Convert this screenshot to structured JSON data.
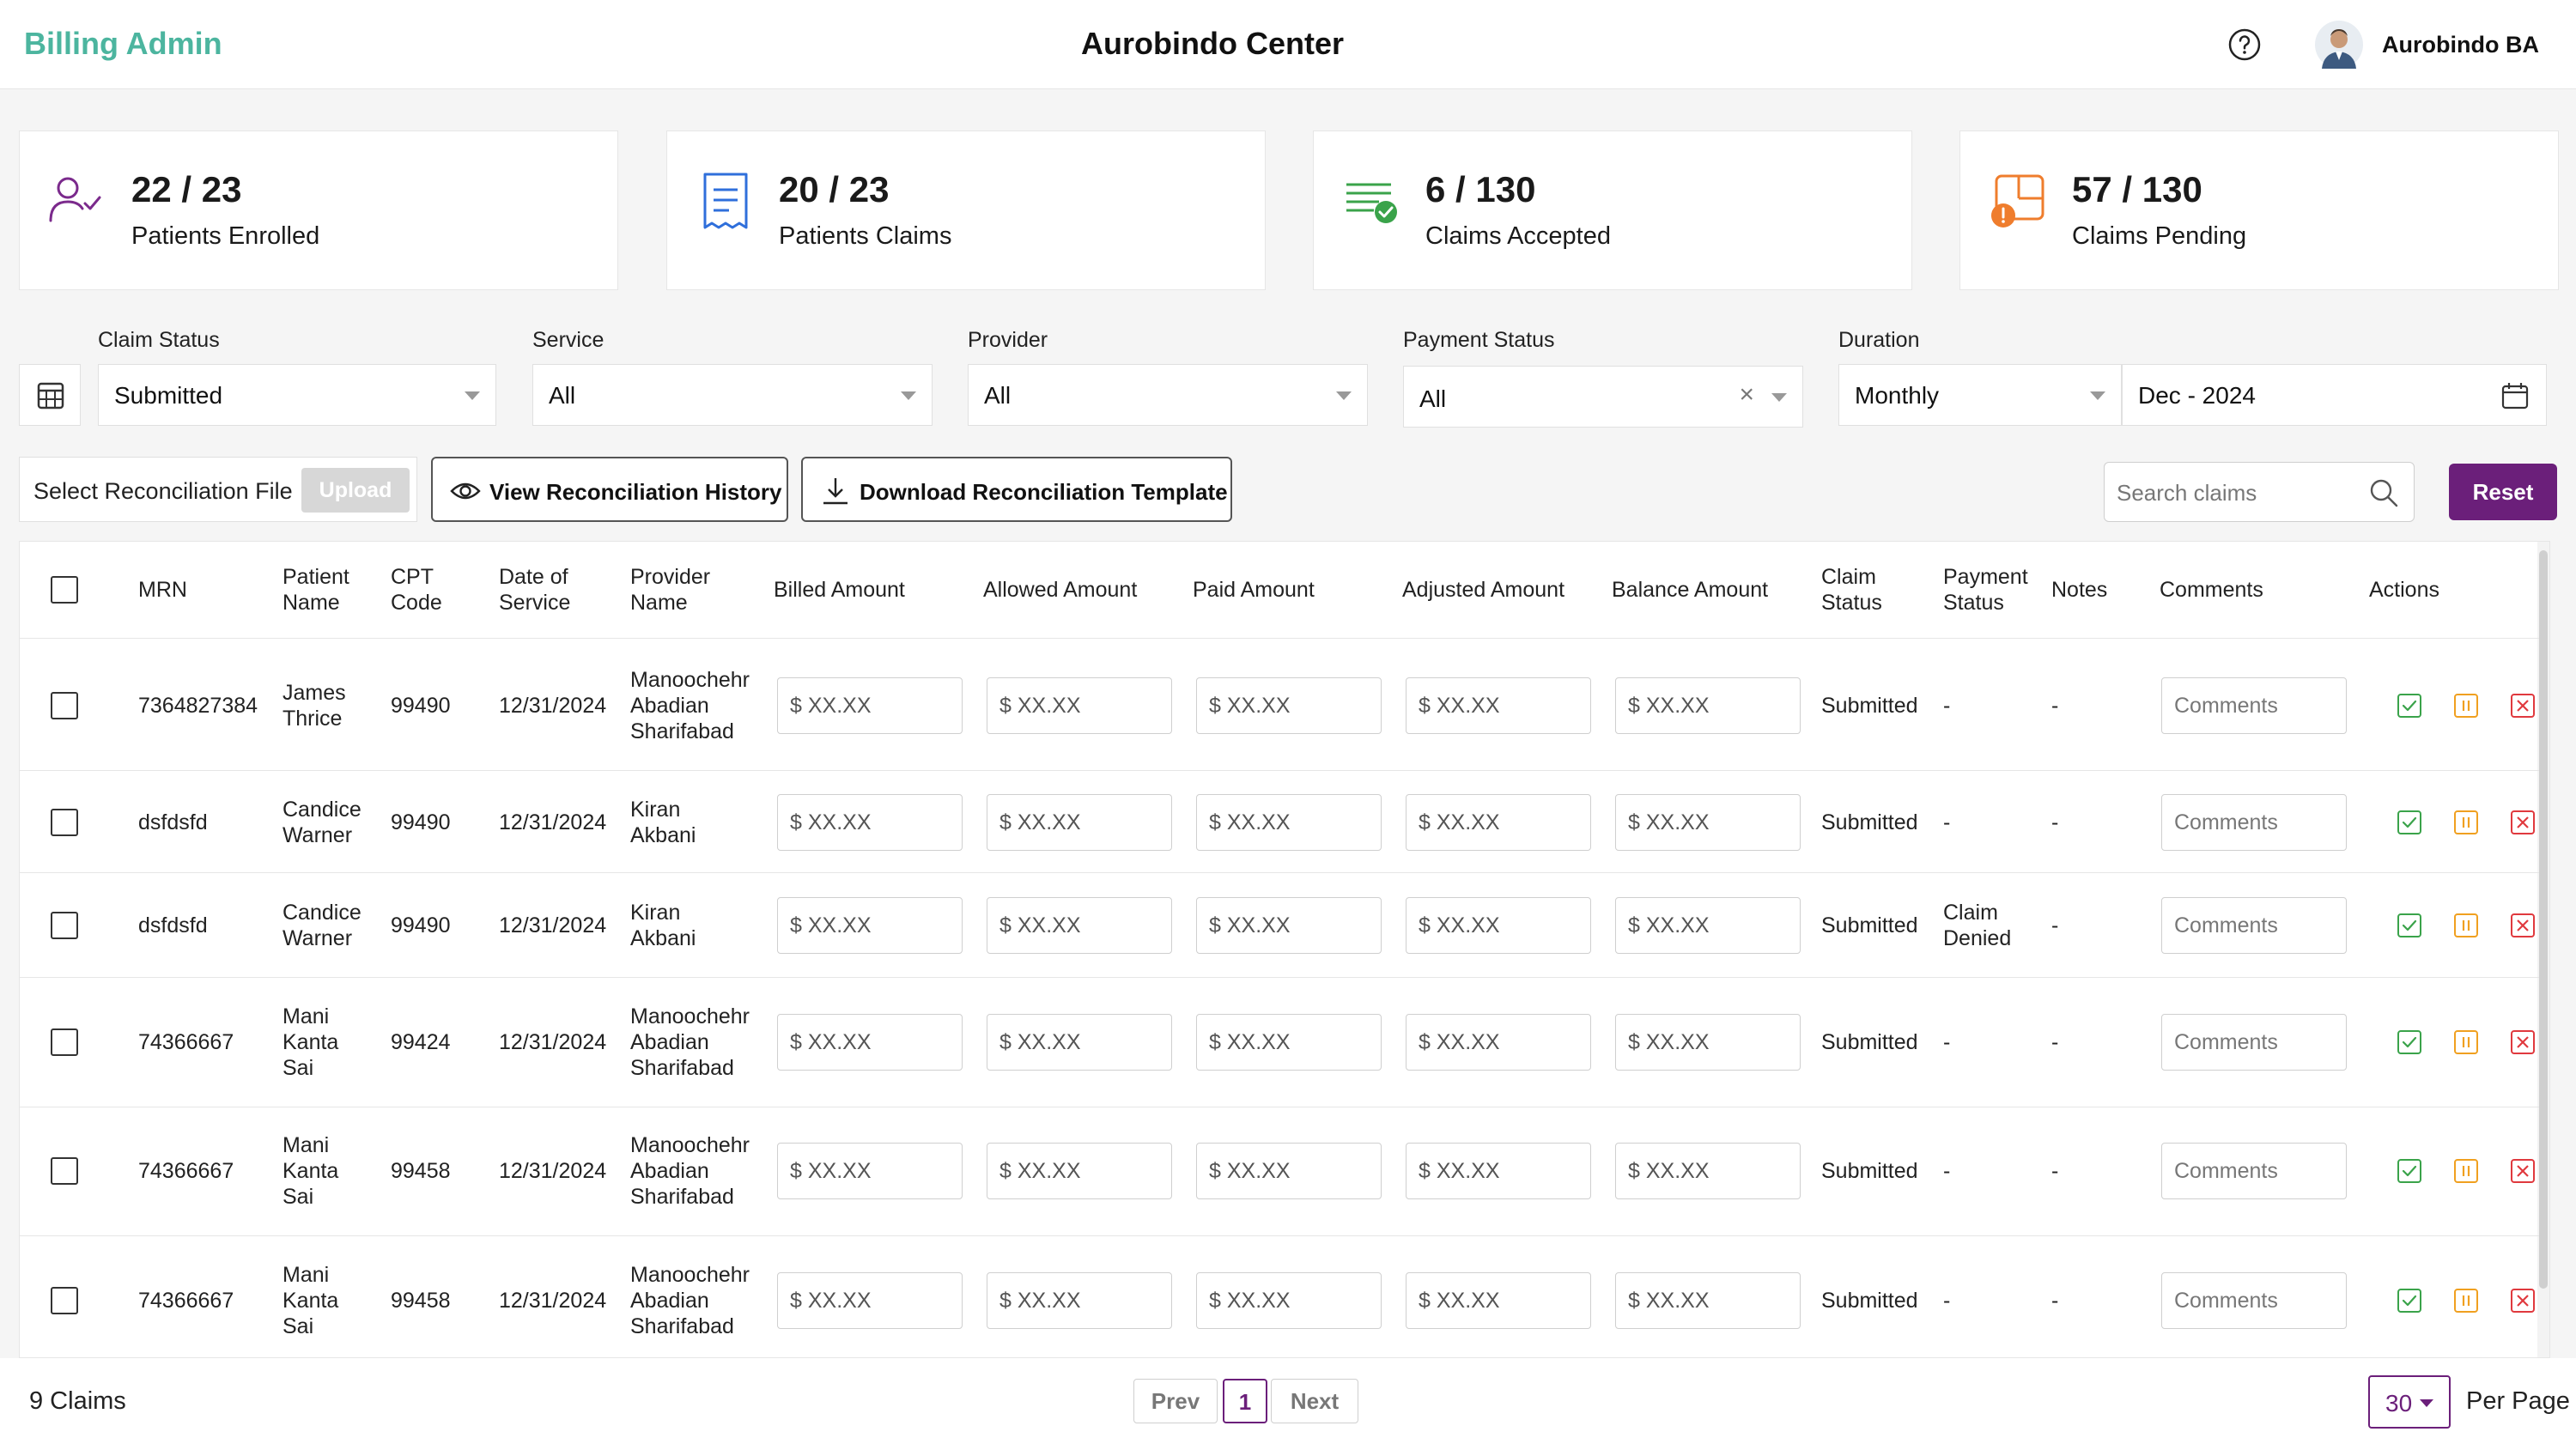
{
  "header": {
    "brand": "Billing Admin",
    "title": "Aurobindo Center",
    "user_name": "Aurobindo BA"
  },
  "stats": [
    {
      "value": "22 / 23",
      "label": "Patients Enrolled",
      "icon": "user-check-icon",
      "color": "#7b2a8c"
    },
    {
      "value": "20 / 23",
      "label": "Patients Claims",
      "icon": "receipt-icon",
      "color": "#2f6fdb"
    },
    {
      "value": "6 / 130",
      "label": "Claims Accepted",
      "icon": "list-check-icon",
      "color": "#3aa34a"
    },
    {
      "value": "57 / 130",
      "label": "Claims Pending",
      "icon": "clock-pending-icon",
      "color": "#ef7d2d"
    }
  ],
  "filters": {
    "claim_status": {
      "label": "Claim Status",
      "value": "Submitted"
    },
    "service": {
      "label": "Service",
      "value": "All"
    },
    "provider": {
      "label": "Provider",
      "value": "All"
    },
    "payment_status": {
      "label": "Payment Status",
      "value": "All",
      "clear": "×"
    },
    "duration": {
      "label": "Duration",
      "value": "Monthly",
      "date": "Dec - 2024"
    }
  },
  "actions": {
    "select_file": "Select Reconciliation File",
    "upload": "Upload",
    "view_history": "View Reconciliation History",
    "download_template": "Download Reconciliation Template",
    "search_placeholder": "Search claims",
    "reset": "Reset"
  },
  "table": {
    "headers": {
      "mrn": "MRN",
      "patient_name": [
        "Patient",
        "Name"
      ],
      "cpt_code": [
        "CPT",
        "Code"
      ],
      "date_of_service": [
        "Date of",
        "Service"
      ],
      "provider_name": [
        "Provider",
        "Name"
      ],
      "billed": "Billed Amount",
      "allowed": "Allowed Amount",
      "paid": "Paid Amount",
      "adjusted": "Adjusted Amount",
      "balance": "Balance Amount",
      "claim_status": [
        "Claim",
        "Status"
      ],
      "payment_status": [
        "Payment",
        "Status"
      ],
      "notes": "Notes",
      "comments": "Comments",
      "actions": "Actions"
    },
    "amount_placeholder": "$ XX.XX",
    "comment_placeholder": "Comments",
    "rows": [
      {
        "mrn": "7364827384",
        "patient": [
          "James",
          "Thrice"
        ],
        "cpt": "99490",
        "date": "12/31/2024",
        "provider": [
          "Manoochehr",
          "Abadian",
          "Sharifabad"
        ],
        "claim_status": "Submitted",
        "payment_status": [
          "-"
        ],
        "notes": "-"
      },
      {
        "mrn": "dsfdsfd",
        "patient": [
          "Candice",
          "Warner"
        ],
        "cpt": "99490",
        "date": "12/31/2024",
        "provider": [
          "Kiran",
          "Akbani"
        ],
        "claim_status": "Submitted",
        "payment_status": [
          "-"
        ],
        "notes": "-"
      },
      {
        "mrn": "dsfdsfd",
        "patient": [
          "Candice",
          "Warner"
        ],
        "cpt": "99490",
        "date": "12/31/2024",
        "provider": [
          "Kiran",
          "Akbani"
        ],
        "claim_status": "Submitted",
        "payment_status": [
          "Claim",
          "Denied"
        ],
        "notes": "-"
      },
      {
        "mrn": "74366667",
        "patient": [
          "Mani",
          "Kanta",
          "Sai"
        ],
        "cpt": "99424",
        "date": "12/31/2024",
        "provider": [
          "Manoochehr",
          "Abadian",
          "Sharifabad"
        ],
        "claim_status": "Submitted",
        "payment_status": [
          "-"
        ],
        "notes": "-"
      },
      {
        "mrn": "74366667",
        "patient": [
          "Mani",
          "Kanta",
          "Sai"
        ],
        "cpt": "99458",
        "date": "12/31/2024",
        "provider": [
          "Manoochehr",
          "Abadian",
          "Sharifabad"
        ],
        "claim_status": "Submitted",
        "payment_status": [
          "-"
        ],
        "notes": "-"
      },
      {
        "mrn": "74366667",
        "patient": [
          "Mani",
          "Kanta",
          "Sai"
        ],
        "cpt": "99458",
        "date": "12/31/2024",
        "provider": [
          "Manoochehr",
          "Abadian",
          "Sharifabad"
        ],
        "claim_status": "Submitted",
        "payment_status": [
          "-"
        ],
        "notes": "-"
      }
    ]
  },
  "footer": {
    "claims_count": "9 Claims",
    "prev": "Prev",
    "page": "1",
    "next": "Next",
    "per_page_value": "30",
    "per_page_label": "Per Page"
  },
  "colors": {
    "brand": "#4cb59f",
    "primary": "#6b1f7a",
    "approve": "#3aa34a",
    "hold": "#f0a020",
    "reject": "#e0393e"
  }
}
